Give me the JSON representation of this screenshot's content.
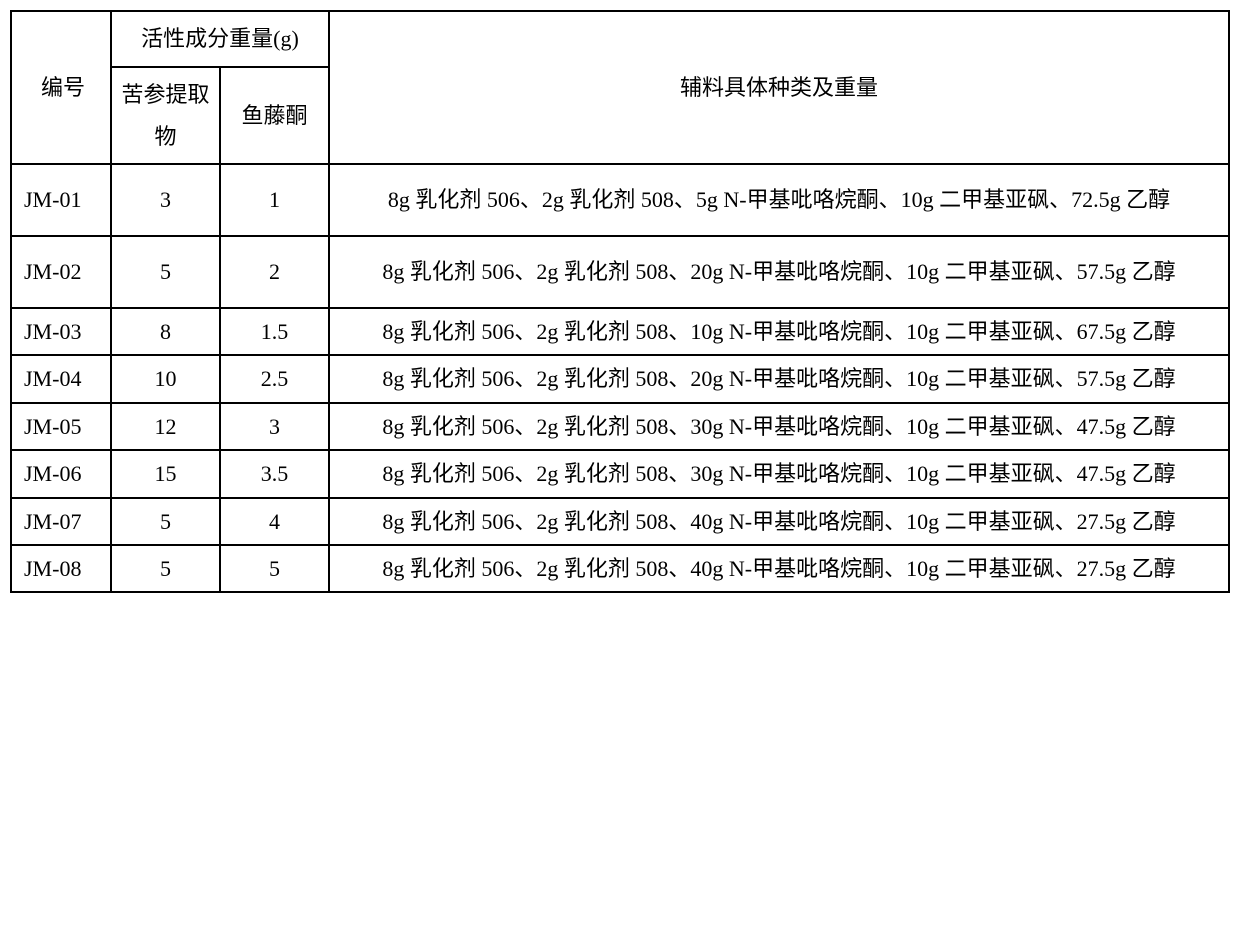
{
  "table": {
    "type": "table",
    "background_color": "#ffffff",
    "border_color": "#000000",
    "text_color": "#000000",
    "font_family": "SimSun",
    "base_fontsize": 22,
    "columns": {
      "id_header": "编号",
      "active_group_header": "活性成分重量(g)",
      "extract_header": "苦参提取物",
      "rotenone_header": "鱼藤酮",
      "excipient_header": "辅料具体种类及重量"
    },
    "column_widths": {
      "id": 100,
      "extract": 120,
      "rotenone": 100,
      "excipient": 900
    },
    "rows": [
      {
        "id": "JM-01",
        "extract": "3",
        "rotenone": "1",
        "excipient": "8g 乳化剂 506、2g 乳化剂 508、5g N-甲基吡咯烷酮、10g 二甲基亚砜、72.5g 乙醇",
        "height": "tall"
      },
      {
        "id": "JM-02",
        "extract": "5",
        "rotenone": "2",
        "excipient": "8g 乳化剂 506、2g 乳化剂 508、20g N-甲基吡咯烷酮、10g 二甲基亚砜、57.5g 乙醇",
        "height": "tall"
      },
      {
        "id": "JM-03",
        "extract": "8",
        "rotenone": "1.5",
        "excipient": "8g 乳化剂 506、2g 乳化剂 508、10g N-甲基吡咯烷酮、10g 二甲基亚砜、67.5g 乙醇",
        "height": "short"
      },
      {
        "id": "JM-04",
        "extract": "10",
        "rotenone": "2.5",
        "excipient": "8g 乳化剂 506、2g 乳化剂 508、20g N-甲基吡咯烷酮、10g 二甲基亚砜、57.5g 乙醇",
        "height": "short"
      },
      {
        "id": "JM-05",
        "extract": "12",
        "rotenone": "3",
        "excipient": "8g 乳化剂 506、2g 乳化剂 508、30g N-甲基吡咯烷酮、10g 二甲基亚砜、47.5g 乙醇",
        "height": "short"
      },
      {
        "id": "JM-06",
        "extract": "15",
        "rotenone": "3.5",
        "excipient": "8g 乳化剂 506、2g 乳化剂 508、30g N-甲基吡咯烷酮、10g 二甲基亚砜、47.5g 乙醇",
        "height": "short"
      },
      {
        "id": "JM-07",
        "extract": "5",
        "rotenone": "4",
        "excipient": "8g 乳化剂 506、2g 乳化剂 508、40g N-甲基吡咯烷酮、10g 二甲基亚砜、27.5g 乙醇",
        "height": "short"
      },
      {
        "id": "JM-08",
        "extract": "5",
        "rotenone": "5",
        "excipient": "8g 乳化剂 506、2g 乳化剂 508、40g N-甲基吡咯烷酮、10g 二甲基亚砜、27.5g 乙醇",
        "height": "short"
      }
    ]
  }
}
